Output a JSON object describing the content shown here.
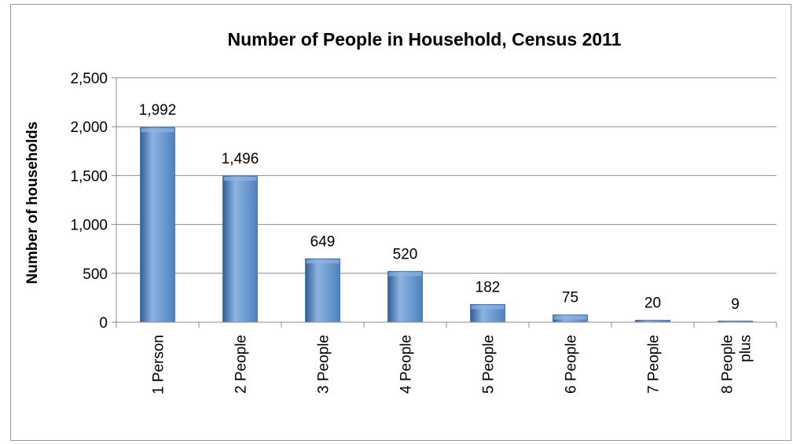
{
  "chart_data": {
    "type": "bar",
    "title": "Number of People in Household, Census 2011",
    "ylabel": "Number of households",
    "xlabel": "",
    "categories": [
      "1 Person",
      "2 People",
      "3 People",
      "4 People",
      "5 People",
      "6 People",
      "7 People",
      "8 People plus"
    ],
    "category_lines": [
      [
        "1 Person"
      ],
      [
        "2 People"
      ],
      [
        "3 People"
      ],
      [
        "4 People"
      ],
      [
        "5 People"
      ],
      [
        "6 People"
      ],
      [
        "7 People"
      ],
      [
        "8 People",
        "plus"
      ]
    ],
    "values": [
      1992,
      1496,
      649,
      520,
      182,
      75,
      20,
      9
    ],
    "data_labels": [
      "1,992",
      "1,496",
      "649",
      "520",
      "182",
      "75",
      "20",
      "9"
    ],
    "ylim": [
      0,
      2500
    ],
    "yticks": [
      0,
      500,
      1000,
      1500,
      2000,
      2500
    ],
    "ytick_labels": [
      "0",
      "500",
      "1,000",
      "1,500",
      "2,000",
      "2,500"
    ],
    "grid": true,
    "legend": "none",
    "bar_color": "#4f81bd",
    "bar_color_dark": "#2f5f98",
    "bar_color_light": "#8db3e2"
  }
}
